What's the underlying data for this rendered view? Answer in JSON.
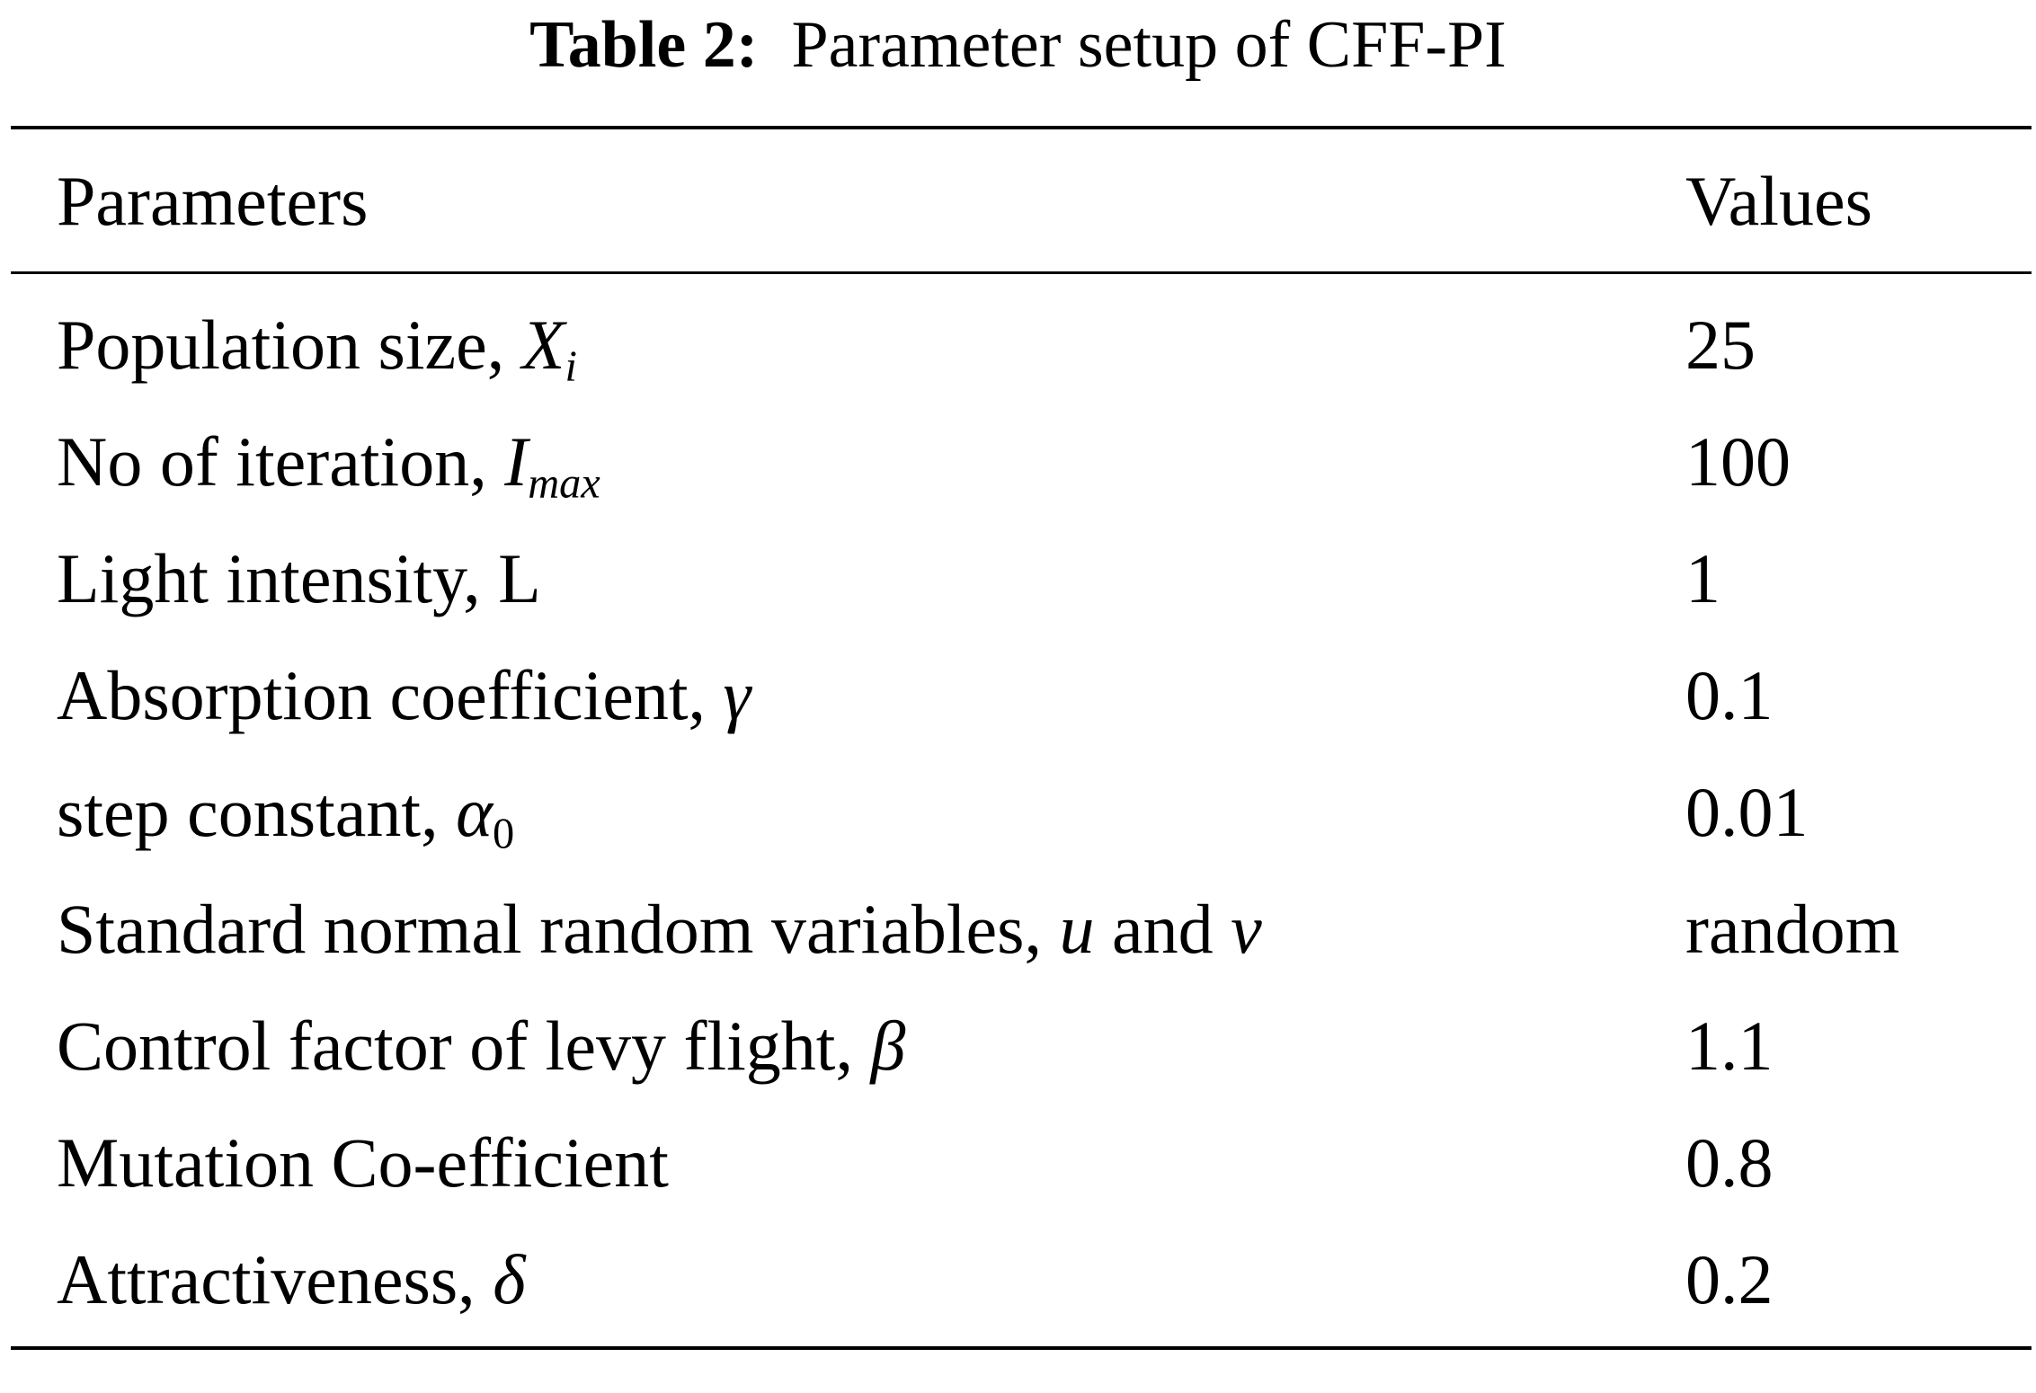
{
  "caption": {
    "label": "Table 2:",
    "text": "Parameter setup of CFF-PI"
  },
  "header": {
    "parameters": "Parameters",
    "values": "Values"
  },
  "rows": [
    {
      "param": "Population size, ",
      "symbol": "X",
      "sub": "i",
      "sub_upright": false,
      "value": "25"
    },
    {
      "param": "No of iteration, ",
      "symbol": "I",
      "sub": "max",
      "sub_upright": false,
      "value": "100"
    },
    {
      "param": "Light intensity, L",
      "symbol": "",
      "sub": "",
      "sub_upright": false,
      "value": "1"
    },
    {
      "param": "Absorption coefficient, ",
      "symbol": "γ",
      "sub": "",
      "sub_upright": false,
      "value": "0.1"
    },
    {
      "param": "step constant, ",
      "symbol": "α",
      "sub": "0",
      "sub_upright": true,
      "value": "0.01"
    },
    {
      "param": "Standard normal random variables, ",
      "symbol": "u",
      "sub": "",
      "sub_upright": false,
      "conj": " and ",
      "symbol2": "v",
      "value": "random"
    },
    {
      "param": "Control factor of levy flight, ",
      "symbol": "β",
      "sub": "",
      "sub_upright": false,
      "value": "1.1"
    },
    {
      "param": "Mutation Co-efficient",
      "symbol": "",
      "sub": "",
      "sub_upright": false,
      "value": "0.8"
    },
    {
      "param": "Attractiveness, ",
      "symbol": "δ",
      "sub": "",
      "sub_upright": false,
      "value": "0.2"
    }
  ]
}
